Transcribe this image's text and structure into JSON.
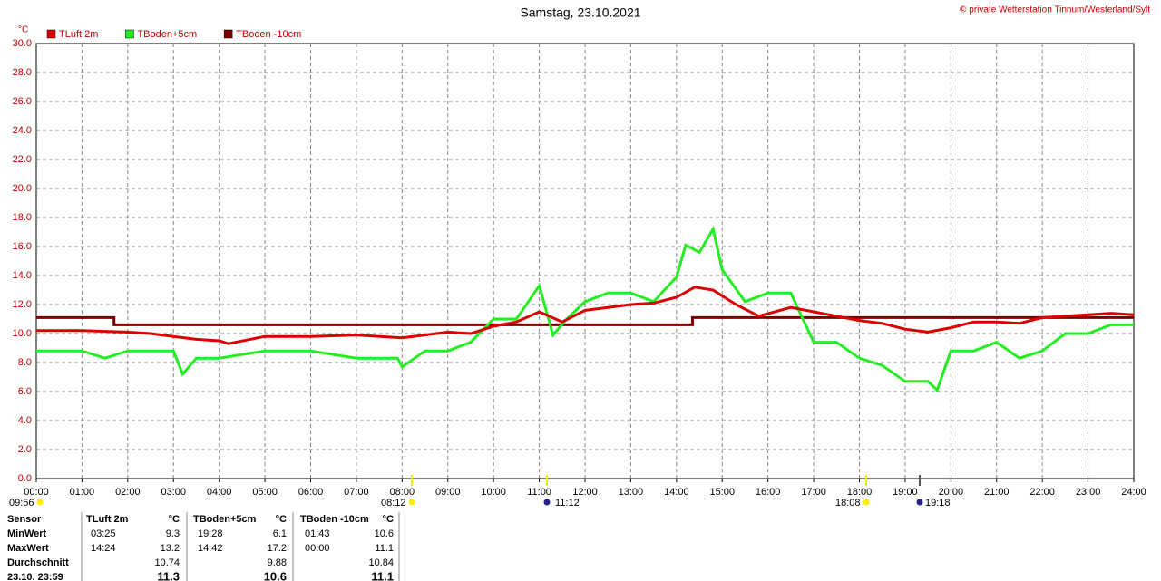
{
  "chart_data": {
    "type": "line",
    "title": "Samstag, 23.10.2021",
    "credit": "© private Wetterstation Tinnum/Westerland/Sylt",
    "y_unit": "°C",
    "xlim": [
      0,
      24
    ],
    "xticks": [
      {
        "value": 0,
        "label": "00:00"
      },
      {
        "value": 1,
        "label": "01:00"
      },
      {
        "value": 2,
        "label": "02:00"
      },
      {
        "value": 3,
        "label": "03:00"
      },
      {
        "value": 4,
        "label": "04:00"
      },
      {
        "value": 5,
        "label": "05:00"
      },
      {
        "value": 6,
        "label": "06:00"
      },
      {
        "value": 7,
        "label": "07:00"
      },
      {
        "value": 8,
        "label": "08:00"
      },
      {
        "value": 9,
        "label": "09:00"
      },
      {
        "value": 10,
        "label": "10:00"
      },
      {
        "value": 11,
        "label": "11:00"
      },
      {
        "value": 12,
        "label": "12:00"
      },
      {
        "value": 13,
        "label": "13:00"
      },
      {
        "value": 14,
        "label": "14:00"
      },
      {
        "value": 15,
        "label": "15:00"
      },
      {
        "value": 16,
        "label": "16:00"
      },
      {
        "value": 17,
        "label": "17:00"
      },
      {
        "value": 18,
        "label": "18:00"
      },
      {
        "value": 19,
        "label": "19:00"
      },
      {
        "value": 20,
        "label": "20:00"
      },
      {
        "value": 21,
        "label": "21:00"
      },
      {
        "value": 22,
        "label": "22:00"
      },
      {
        "value": 23,
        "label": "23:00"
      },
      {
        "value": 24,
        "label": "24:00"
      }
    ],
    "ylim": [
      0,
      30
    ],
    "yticks": [
      {
        "value": 0,
        "label": "0.0"
      },
      {
        "value": 2,
        "label": "2.0"
      },
      {
        "value": 4,
        "label": "4.0"
      },
      {
        "value": 6,
        "label": "6.0"
      },
      {
        "value": 8,
        "label": "8.0"
      },
      {
        "value": 10,
        "label": "10.0"
      },
      {
        "value": 12,
        "label": "12.0"
      },
      {
        "value": 14,
        "label": "14.0"
      },
      {
        "value": 16,
        "label": "16.0"
      },
      {
        "value": 18,
        "label": "18.0"
      },
      {
        "value": 20,
        "label": "20.0"
      },
      {
        "value": 22,
        "label": "22.0"
      },
      {
        "value": 24,
        "label": "24.0"
      },
      {
        "value": 26,
        "label": "26.0"
      },
      {
        "value": 28,
        "label": "28.0"
      },
      {
        "value": 30,
        "label": "30.0"
      }
    ],
    "grid": true,
    "series": [
      {
        "name": "TLuft 2m",
        "color": "#dd0000",
        "x": [
          0,
          1,
          2,
          2.5,
          3,
          3.5,
          4,
          4.2,
          5,
          6,
          7,
          8,
          8.5,
          9,
          9.5,
          10,
          10.5,
          11,
          11.5,
          12,
          12.5,
          13,
          13.5,
          14,
          14.4,
          14.8,
          15.3,
          15.8,
          16.5,
          17,
          17.5,
          18,
          18.5,
          19,
          19.5,
          20,
          20.5,
          21,
          21.5,
          22,
          22.5,
          23,
          23.5,
          24
        ],
        "values": [
          10.2,
          10.2,
          10.1,
          10.0,
          9.8,
          9.6,
          9.5,
          9.3,
          9.8,
          9.8,
          9.9,
          9.7,
          9.9,
          10.1,
          10.0,
          10.5,
          10.8,
          11.5,
          10.8,
          11.6,
          11.8,
          12.0,
          12.1,
          12.5,
          13.2,
          13.0,
          12.0,
          11.2,
          11.8,
          11.5,
          11.2,
          10.9,
          10.7,
          10.3,
          10.1,
          10.4,
          10.8,
          10.8,
          10.7,
          11.1,
          11.2,
          11.3,
          11.4,
          11.3
        ]
      },
      {
        "name": "TBoden+5cm",
        "color": "#22ee22",
        "x": [
          0,
          1,
          1.5,
          2,
          3,
          3.2,
          3.5,
          4,
          5,
          6,
          7,
          7.9,
          8,
          8.5,
          9,
          9.5,
          10,
          10.5,
          11,
          11.3,
          11.6,
          12,
          12.5,
          13,
          13.5,
          14,
          14.2,
          14.5,
          14.8,
          15,
          15.5,
          16,
          16.5,
          17,
          17.5,
          18,
          18.5,
          19,
          19.5,
          19.7,
          20,
          20.5,
          21,
          21.5,
          22,
          22.5,
          23,
          23.5,
          24
        ],
        "values": [
          8.8,
          8.8,
          8.3,
          8.8,
          8.8,
          7.2,
          8.3,
          8.3,
          8.8,
          8.8,
          8.3,
          8.3,
          7.7,
          8.8,
          8.8,
          9.4,
          11.0,
          11.0,
          13.3,
          9.9,
          11.0,
          12.2,
          12.8,
          12.8,
          12.2,
          13.9,
          16.1,
          15.6,
          17.2,
          14.4,
          12.2,
          12.8,
          12.8,
          9.4,
          9.4,
          8.3,
          7.8,
          6.7,
          6.7,
          6.1,
          8.8,
          8.8,
          9.4,
          8.3,
          8.8,
          10.0,
          10.0,
          10.6,
          10.6
        ]
      },
      {
        "name": "TBoden -10cm",
        "color": "#7a0000",
        "x": [
          0,
          1.7,
          1.7,
          14.35,
          14.35,
          24
        ],
        "values": [
          11.1,
          11.1,
          10.6,
          10.6,
          11.1,
          11.1
        ]
      }
    ],
    "annotations": [
      "09:56",
      "08:12",
      "11:12",
      "18:08",
      "19:18"
    ],
    "table": {
      "header": [
        "Sensor",
        "TLuft 2m",
        "°C",
        "TBoden+5cm",
        "°C",
        "TBoden -10cm",
        "°C"
      ],
      "rows": [
        {
          "label": "MinWert",
          "times": [
            "03:25",
            "19:28",
            "01:43"
          ],
          "values": [
            9.3,
            6.1,
            10.6
          ]
        },
        {
          "label": "MaxWert",
          "times": [
            "14:24",
            "14:42",
            "00:00"
          ],
          "values": [
            13.2,
            17.2,
            11.1
          ]
        },
        {
          "label": "Durchschnitt",
          "values": [
            10.74,
            9.88,
            10.84
          ]
        },
        {
          "label": "23.10. 23:59",
          "values": [
            11.3,
            10.6,
            11.1
          ]
        }
      ]
    }
  }
}
